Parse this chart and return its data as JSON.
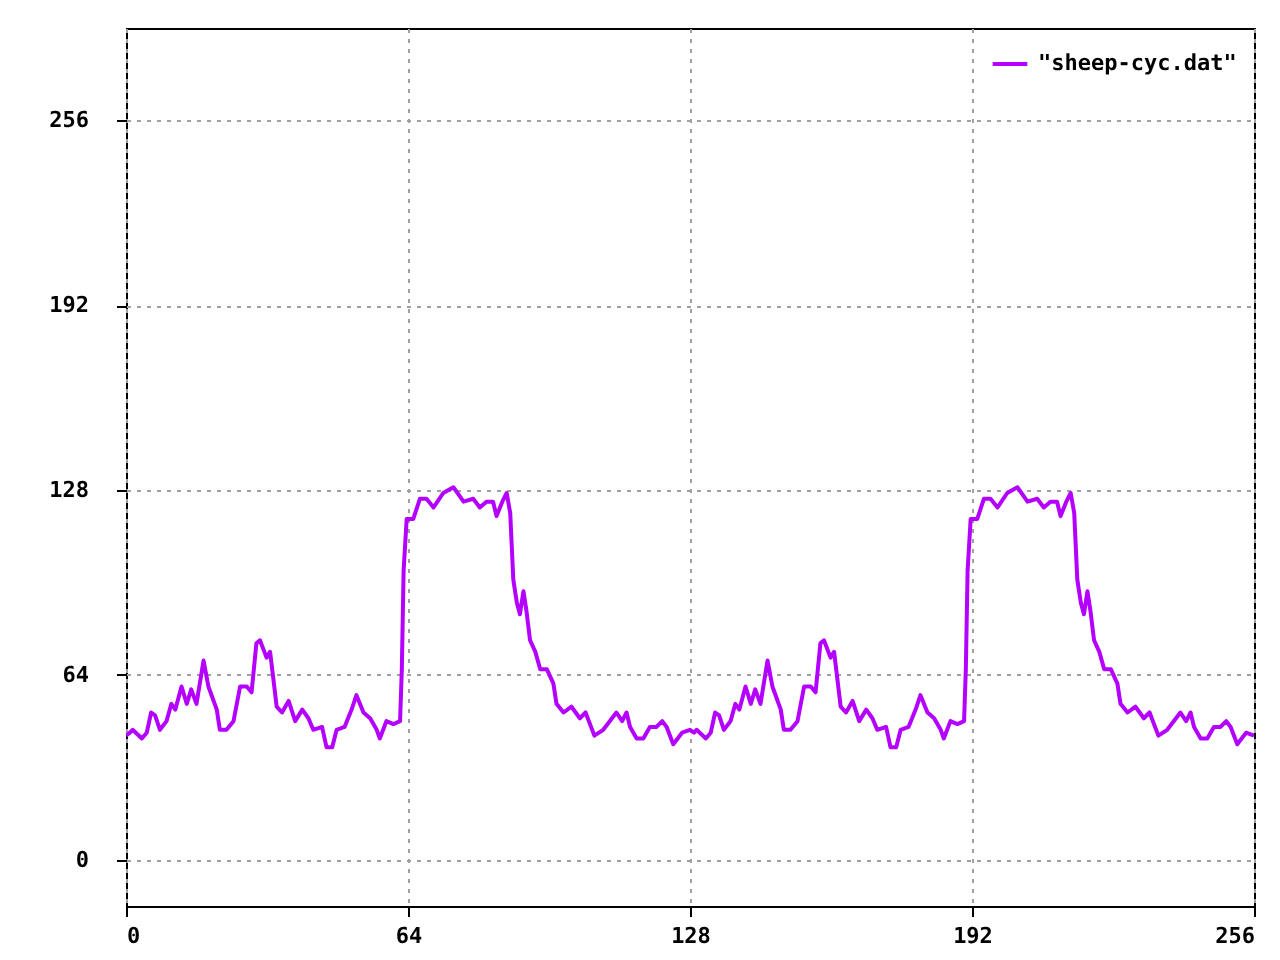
{
  "chart_data": {
    "type": "line",
    "xlim": [
      0,
      256
    ],
    "ylim": [
      -16,
      288
    ],
    "xticks": [
      0,
      64,
      128,
      192,
      256
    ],
    "yticks": [
      0,
      64,
      128,
      192,
      256
    ],
    "grid": true,
    "legend": "top right",
    "line_style": "solid",
    "marker": "none",
    "x": [
      0,
      0.9,
      1.5,
      3.6,
      4.7,
      5.7,
      6.6,
      7.7,
      9.2,
      10.3,
      11.2,
      12.6,
      13.8,
      14.8,
      16,
      17.6,
      18.7,
      20.6,
      21.3,
      22.8,
      24.4,
      25.9,
      27.4,
      28.5,
      29.6,
      30.4,
      31.9,
      32.7,
      34.2,
      35.4,
      36.9,
      38.4,
      40,
      41.4,
      42.5,
      44.5,
      45.5,
      46.8,
      47.8,
      49.6,
      51.2,
      52.3,
      53.9,
      55.4,
      56.9,
      57.6,
      59.1,
      60.7,
      62.2,
      62.6,
      63,
      63.7,
      65.2,
      66.7,
      68.2,
      69.8,
      72,
      74.3,
      76.6,
      78.8,
      80.3,
      81.8,
      83.3,
      84.1,
      85.4,
      86.4,
      87.2,
      87.9,
      88.7,
      89.4,
      90.2,
      90.9,
      91.7,
      92.9,
      94,
      95.5,
      97,
      97.7,
      99.3,
      101.1,
      103,
      104.3,
      106.3,
      108.3,
      111.3,
      112.6,
      113.6,
      114.4,
      115.9,
      117.4,
      118.9,
      120.4,
      121.7,
      122.7,
      124.2,
      126.2,
      128,
      128.9,
      129.5,
      131.6,
      132.7,
      133.7,
      134.6,
      135.7,
      137.2,
      138.3,
      139.2,
      140.6,
      141.8,
      142.8,
      144,
      145.6,
      146.7,
      148.6,
      149.3,
      150.8,
      152.4,
      153.9,
      155.4,
      156.5,
      157.6,
      158.4,
      159.9,
      160.7,
      162.2,
      163.4,
      164.9,
      166.4,
      168,
      169.4,
      170.5,
      172.5,
      173.5,
      174.8,
      175.8,
      177.6,
      179.2,
      180.3,
      181.9,
      183.4,
      184.9,
      185.6,
      187.1,
      188.7,
      190.2,
      190.6,
      191,
      191.7,
      193.2,
      194.7,
      196.2,
      197.8,
      200,
      202.3,
      204.6,
      206.8,
      208.3,
      209.8,
      211.3,
      212.1,
      213.4,
      214.4,
      215.2,
      215.9,
      216.7,
      217.4,
      218.2,
      218.9,
      219.7,
      220.9,
      222,
      223.5,
      225,
      225.7,
      227.3,
      229.1,
      231,
      232.3,
      234.3,
      236.3,
      239.3,
      240.6,
      241.6,
      242.4,
      243.9,
      245.4,
      246.9,
      248.4,
      249.7,
      250.7,
      252.2,
      254.2,
      256
    ],
    "series": [
      {
        "name": "\"sheep-cyc.dat\"",
        "color": "#b400ff",
        "values": [
          43,
          44,
          45,
          42,
          44,
          51,
          50,
          45,
          48,
          54,
          52,
          60,
          54,
          59,
          54,
          69,
          60,
          52,
          45,
          45,
          48,
          60,
          60,
          58,
          75,
          76,
          70,
          72,
          53,
          51,
          55,
          48,
          52,
          49,
          45,
          46,
          39,
          39,
          45,
          46,
          52,
          57,
          51,
          49,
          45,
          42,
          48,
          47,
          48,
          66,
          100,
          118,
          118,
          125,
          125,
          122,
          127,
          129,
          124,
          125,
          122,
          124,
          124,
          119,
          124,
          127,
          120,
          97,
          89,
          85,
          93,
          86,
          76,
          72,
          66,
          66,
          61,
          54,
          51,
          53,
          49,
          51,
          43,
          45,
          51,
          48,
          51,
          46,
          42,
          42,
          46,
          46,
          48,
          46,
          40,
          44,
          45,
          44,
          45,
          42,
          44,
          51,
          50,
          45,
          48,
          54,
          52,
          60,
          54,
          59,
          54,
          69,
          60,
          52,
          45,
          45,
          48,
          60,
          60,
          58,
          75,
          76,
          70,
          72,
          53,
          51,
          55,
          48,
          52,
          49,
          45,
          46,
          39,
          39,
          45,
          46,
          52,
          57,
          51,
          49,
          45,
          42,
          48,
          47,
          48,
          66,
          100,
          118,
          118,
          125,
          125,
          122,
          127,
          129,
          124,
          125,
          122,
          124,
          124,
          119,
          124,
          127,
          120,
          97,
          89,
          85,
          93,
          86,
          76,
          72,
          66,
          66,
          61,
          54,
          51,
          53,
          49,
          51,
          43,
          45,
          51,
          48,
          51,
          46,
          42,
          42,
          46,
          46,
          48,
          46,
          40,
          44,
          43
        ]
      }
    ]
  }
}
